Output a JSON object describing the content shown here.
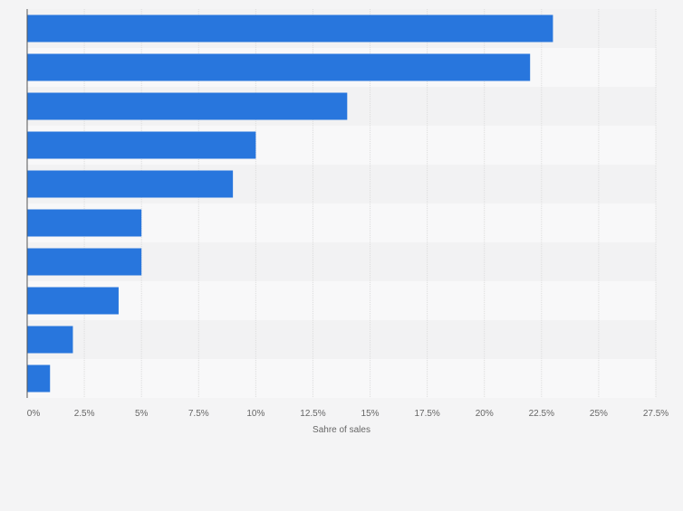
{
  "chart_data": {
    "type": "bar",
    "orientation": "horizontal",
    "title": "",
    "xlabel": "Sahre of sales",
    "ylabel": "",
    "categories": [
      "",
      "",
      "",
      "",
      "",
      "",
      "",
      "",
      "",
      ""
    ],
    "values": [
      23,
      22,
      14,
      10,
      9,
      5,
      5,
      4,
      2,
      1
    ],
    "xlim": [
      0,
      27.5
    ],
    "ticks": [
      "0%",
      "2.5%",
      "5%",
      "7.5%",
      "10%",
      "12.5%",
      "15%",
      "17.5%",
      "20%",
      "22.5%",
      "25%",
      "27.5%"
    ],
    "tick_values": [
      0,
      2.5,
      5,
      7.5,
      10,
      12.5,
      15,
      17.5,
      20,
      22.5,
      25,
      27.5
    ],
    "grid": true,
    "legend": "none",
    "bar_color": "#2876dd",
    "background_color": "#f4f4f5",
    "band_color_light": "#f8f8f9",
    "band_color_dark": "#f2f2f3",
    "gridline_color": "#dcdcdc",
    "axis_color": "#555555",
    "tick_label_color": "#666666"
  }
}
